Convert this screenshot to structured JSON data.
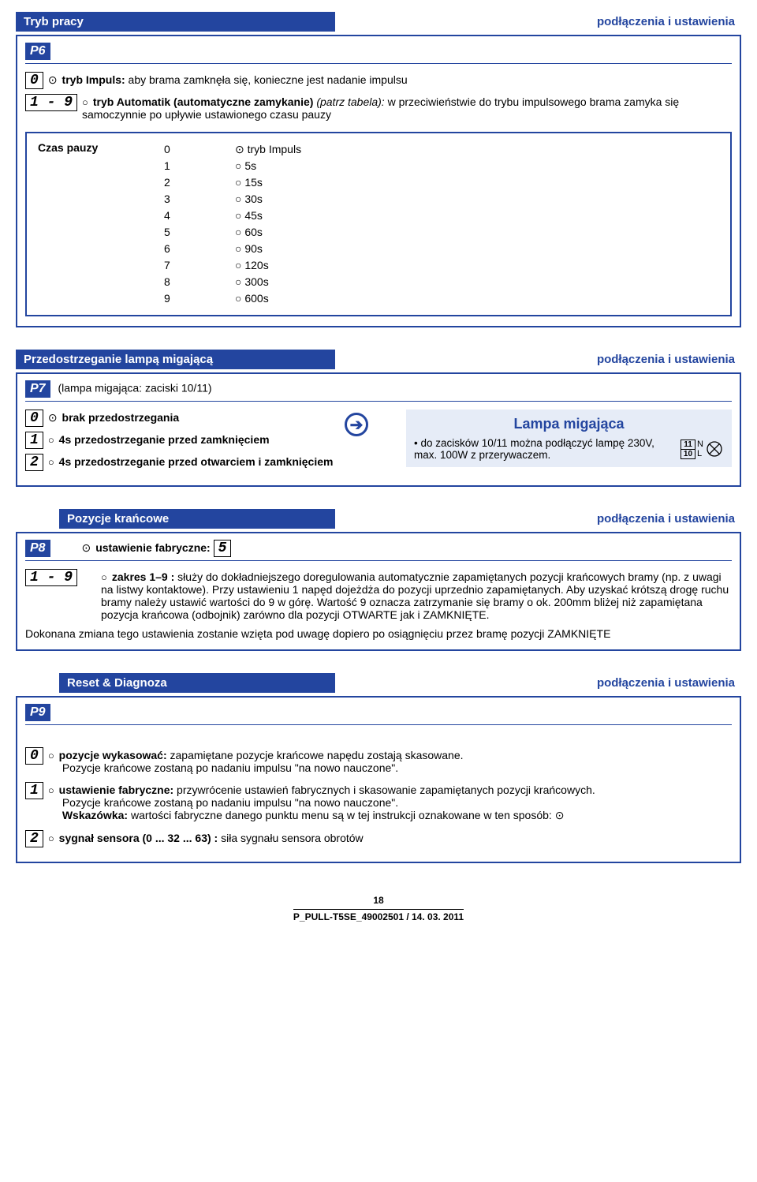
{
  "s1": {
    "title": "Tryb pracy",
    "subtitle": "podłączenia i ustawienia",
    "pcode": "P6",
    "opt0_code": "0",
    "opt0_bold": "tryb Impuls:",
    "opt0_rest": " aby brama zamknęła się, konieczne jest nadanie impulsu",
    "opt1_code": "1 - 9",
    "opt1_bold": "tryb Automatik (automatyczne zamykanie)",
    "opt1_italic": " (patrz tabela):",
    "opt1_rest": " w przeciwieństwie do trybu impulsowego brama zamyka się samoczynnie po upływie ustawionego czasu pauzy",
    "pause_label": "Czas pauzy",
    "pause_rows": [
      {
        "code": "0",
        "mark": "⊙",
        "val": "tryb Impuls"
      },
      {
        "code": "1",
        "mark": "○",
        "val": "5s"
      },
      {
        "code": "2",
        "mark": "○",
        "val": "15s"
      },
      {
        "code": "3",
        "mark": "○",
        "val": "30s"
      },
      {
        "code": "4",
        "mark": "○",
        "val": "45s"
      },
      {
        "code": "5",
        "mark": "○",
        "val": "60s"
      },
      {
        "code": "6",
        "mark": "○",
        "val": "90s"
      },
      {
        "code": "7",
        "mark": "○",
        "val": "120s"
      },
      {
        "code": "8",
        "mark": "○",
        "val": "300s"
      },
      {
        "code": "9",
        "mark": "○",
        "val": "600s"
      }
    ]
  },
  "s2": {
    "title": "Przedostrzeganie lampą migającą",
    "subtitle": "podłączenia i ustawienia",
    "pcode": "P7",
    "pcaption": "(lampa migająca: zaciski 10/11)",
    "opt0_code": "0",
    "opt0": "brak przedostrzegania",
    "opt1_code": "1",
    "opt1": "4s przedostrzeganie przed zamknięciem",
    "opt2_code": "2",
    "opt2": "4s przedostrzeganie przed otwarciem i zamknięciem",
    "info_title": "Lampa migająca",
    "info_text": "do zacisków 10/11 można podłączyć lampę 230V, max. 100W z przerywaczem.",
    "term_top": "11",
    "term_bot": "10",
    "term_n": "N",
    "term_l": "L"
  },
  "s3": {
    "title": "Pozycje krańcowe",
    "subtitle": "podłączenia i ustawienia",
    "pcode": "P8",
    "factory_label": "ustawienie fabryczne:",
    "factory_val": "5",
    "range_code": "1 - 9",
    "range_bold": "zakres 1–9 :",
    "range_text": " służy do dokładniejszego doregulowania automatycznie zapamiętanych pozycji krańcowych bramy (np. z uwagi na listwy kontaktowe). Przy ustawieniu 1 napęd dojeżdża do pozycji uprzednio zapamiętanych. Aby uzyskać krótszą drogę ruchu bramy należy ustawić wartości do 9 w górę. Wartość 9 oznacza zatrzymanie się bramy o ok. 200mm bliżej niż zapamiętana pozycja krańcowa (odbojnik) zarówno dla pozycji OTWARTE jak i ZAMKNIĘTE.",
    "note": "Dokonana zmiana tego ustawienia zostanie wzięta pod uwagę dopiero po osiągnięciu przez bramę pozycji ZAMKNIĘTE"
  },
  "s4": {
    "title": "Reset & Diagnoza",
    "subtitle": "podłączenia i ustawienia",
    "pcode": "P9",
    "opt0_code": "0",
    "opt0_bold": "pozycje wykasować:",
    "opt0_rest": " zapamiętane pozycje krańcowe napędu zostają skasowane.",
    "opt0_line2": "Pozycje krańcowe zostaną po nadaniu impulsu \"na nowo nauczone\".",
    "opt1_code": "1",
    "opt1_bold": "ustawienie fabryczne:",
    "opt1_rest": " przywrócenie ustawień fabrycznych i skasowanie zapamiętanych pozycji krańcowych.",
    "opt1_line2": "Pozycje krańcowe zostaną po nadaniu impulsu \"na nowo nauczone\".",
    "opt1_hint_bold": "Wskazówka:",
    "opt1_hint": " wartości fabryczne danego punktu menu są w tej instrukcji oznakowane w ten sposób: ⊙",
    "opt2_code": "2",
    "opt2_bold": "sygnał sensora (0 ... 32 ... 63)  :",
    "opt2_rest": " siła sygnału sensora obrotów"
  },
  "footer": {
    "page": "18",
    "code": "P_PULL-T5SE_49002501  /  14. 03. 2011"
  },
  "colors": {
    "brand": "#23459f",
    "panel": "#e6ecf7"
  }
}
